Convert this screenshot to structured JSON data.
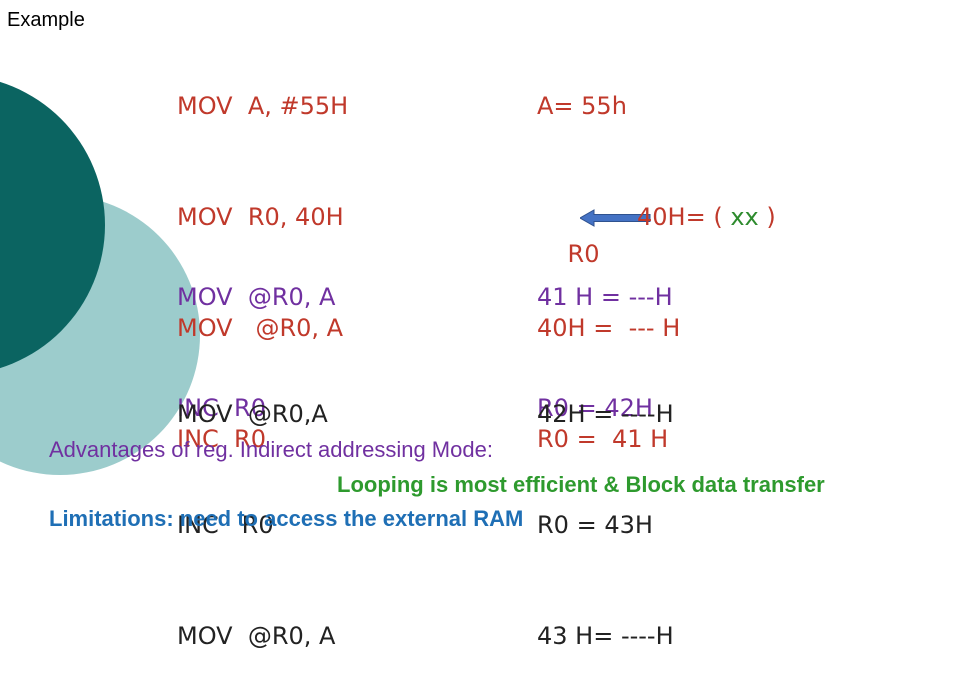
{
  "slide": {
    "title": "Example",
    "block1": {
      "code": [
        "MOV  A, #55H",
        "MOV  R0, 40H",
        "MOV   @R0, A",
        "INC  R0"
      ],
      "results": {
        "line1": "A= 55h",
        "line2_left": "R0",
        "line2_right": "40H= ( ",
        "line2_xx": "xx",
        "line2_close": " )",
        "line3": "40H =  --- H",
        "line4": "R0 =  41 H"
      }
    },
    "block2": {
      "code": [
        "MOV  @R0, A",
        "INC  R0"
      ],
      "results": [
        "41 H = ---H",
        "R0 = 42H"
      ]
    },
    "block3": {
      "code": [
        "MOV  @R0,A",
        "INC   R0",
        "MOV  @R0, A"
      ],
      "results": [
        "42H = ----H",
        "R0 = 43H",
        "43 H= ----H"
      ]
    },
    "advantages_heading": "Advantages of reg. Indirect addressing Mode:",
    "advantages_text": "Looping is most efficient  &  Block data transfer",
    "limitations_text": "Limitations:  need to access the external RAM"
  },
  "colors": {
    "teal_dark": "#0b6461",
    "teal_light": "#9ccccc",
    "code_red": "#c0392b",
    "code_purple": "#7030a0",
    "green": "#2e9a2e",
    "blue": "#1f6fb5"
  }
}
